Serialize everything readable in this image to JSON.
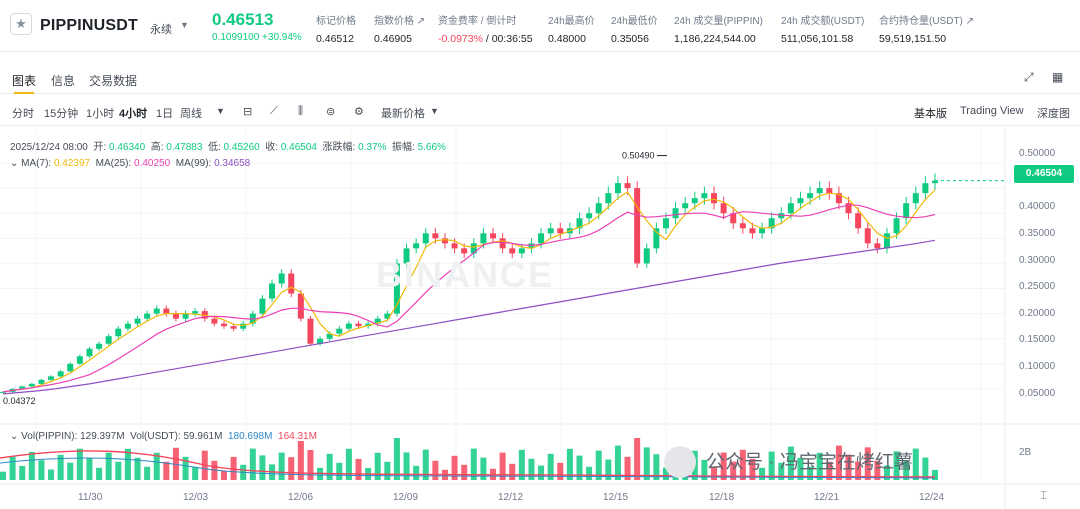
{
  "header": {
    "symbol": "PIPPINUSDT",
    "contract_tag": "永续",
    "price": "0.46513",
    "change": "0.1099100 +30.94%",
    "stats": [
      {
        "label": "标记价格",
        "value": "0.46512"
      },
      {
        "label": "指数价格 ↗",
        "value": "0.46905"
      },
      {
        "label": "资金费率 / 倒计时",
        "value_red": "-0.0973%",
        "value": " / 00:36:55"
      },
      {
        "label": "24h最高价",
        "value": "0.48000"
      },
      {
        "label": "24h最低价",
        "value": "0.35056"
      },
      {
        "label": "24h 成交量(PIPPIN)",
        "value": "1,186,224,544.00"
      },
      {
        "label": "24h 成交额(USDT)",
        "value": "511,056,101.58"
      },
      {
        "label": "合约持仓量(USDT) ↗",
        "value": "59,519,151.50"
      }
    ]
  },
  "tabs": [
    "图表",
    "信息",
    "交易数据"
  ],
  "toolbar": {
    "intervals": [
      "分时",
      "15分钟",
      "1小时",
      "4小时",
      "1日",
      "周线"
    ],
    "active_interval": "4小时",
    "price_type": "最新价格",
    "views": [
      "基本版",
      "Trading View",
      "深度图"
    ]
  },
  "legend": {
    "ohlc": "2025/12/24 08:00  开: 0.46340  高: 0.47883  低: 0.45260  收: 0.46504  涨跌幅: 0.37%  振幅: 5.66%",
    "ohlc_time": "2025/12/24 08:00",
    "open_label": "开:",
    "open": "0.46340",
    "high_label": "高:",
    "high": "0.47883",
    "low_label": "低:",
    "low": "0.45260",
    "close_label": "收:",
    "close": "0.46504",
    "chg_label": "涨跌幅:",
    "chg": "0.37%",
    "amp_label": "振幅:",
    "amp": "5.66%",
    "ma7_label": "MA(7):",
    "ma7": "0.42397",
    "ma25_label": "MA(25):",
    "ma25": "0.40250",
    "ma99_label": "MA(99):",
    "ma99": "0.34658",
    "vol_label": "Vol(PIPPIN):",
    "vol": "129.397M",
    "volusdt_label": "Vol(USDT):",
    "volusdt": "59.961M",
    "vol_ma1": "180.698M",
    "vol_ma2": "164.31M"
  },
  "chart_data": {
    "type": "candlestick",
    "y_ticks": [
      "0.50000",
      "0.45000",
      "0.40000",
      "0.35000",
      "0.30000",
      "0.25000",
      "0.20000",
      "0.15000",
      "0.10000",
      "0.05000"
    ],
    "ylim": [
      0.0,
      0.52
    ],
    "x_labels": [
      "11/30",
      "12/03",
      "12/06",
      "12/09",
      "12/12",
      "12/15",
      "12/18",
      "12/21",
      "12/24"
    ],
    "current_price": "0.46504",
    "max_label": "0.50490",
    "min_label": "0.04372",
    "volume_axis_label": "2B",
    "colors": {
      "up": "#0ecb81",
      "down": "#f6465d",
      "ma7": "#f0b90b",
      "ma25": "#eb40b5",
      "ma99": "#8e4fc4"
    },
    "close_path": [
      0.044,
      0.05,
      0.055,
      0.06,
      0.068,
      0.075,
      0.085,
      0.1,
      0.115,
      0.13,
      0.14,
      0.155,
      0.17,
      0.18,
      0.19,
      0.2,
      0.21,
      0.2,
      0.19,
      0.2,
      0.205,
      0.19,
      0.18,
      0.175,
      0.17,
      0.18,
      0.2,
      0.23,
      0.26,
      0.28,
      0.24,
      0.19,
      0.14,
      0.15,
      0.16,
      0.17,
      0.18,
      0.175,
      0.18,
      0.19,
      0.2,
      0.3,
      0.33,
      0.34,
      0.36,
      0.35,
      0.34,
      0.33,
      0.32,
      0.34,
      0.36,
      0.35,
      0.33,
      0.32,
      0.33,
      0.34,
      0.36,
      0.37,
      0.36,
      0.37,
      0.39,
      0.4,
      0.42,
      0.44,
      0.46,
      0.45,
      0.3,
      0.33,
      0.37,
      0.39,
      0.41,
      0.42,
      0.43,
      0.44,
      0.42,
      0.4,
      0.38,
      0.37,
      0.36,
      0.37,
      0.39,
      0.4,
      0.42,
      0.43,
      0.44,
      0.45,
      0.44,
      0.42,
      0.4,
      0.37,
      0.34,
      0.33,
      0.36,
      0.39,
      0.42,
      0.44,
      0.46,
      0.465
    ],
    "ma99_path": [
      0.04,
      0.043,
      0.046,
      0.05,
      0.055,
      0.06,
      0.066,
      0.072,
      0.078,
      0.084,
      0.09,
      0.096,
      0.102,
      0.108,
      0.114,
      0.12,
      0.126,
      0.132,
      0.138,
      0.144,
      0.15,
      0.156,
      0.162,
      0.168,
      0.174,
      0.18,
      0.186,
      0.192,
      0.198,
      0.204,
      0.21,
      0.216,
      0.222,
      0.228,
      0.234,
      0.24,
      0.246,
      0.252,
      0.258,
      0.264,
      0.27,
      0.276,
      0.282,
      0.288,
      0.294,
      0.3,
      0.305,
      0.31,
      0.315,
      0.32,
      0.325,
      0.33,
      0.335,
      0.34,
      0.346
    ]
  },
  "watermark": {
    "brand": "BINANCE",
    "text": "公众号 · 冯宝宝在烤红薯"
  }
}
